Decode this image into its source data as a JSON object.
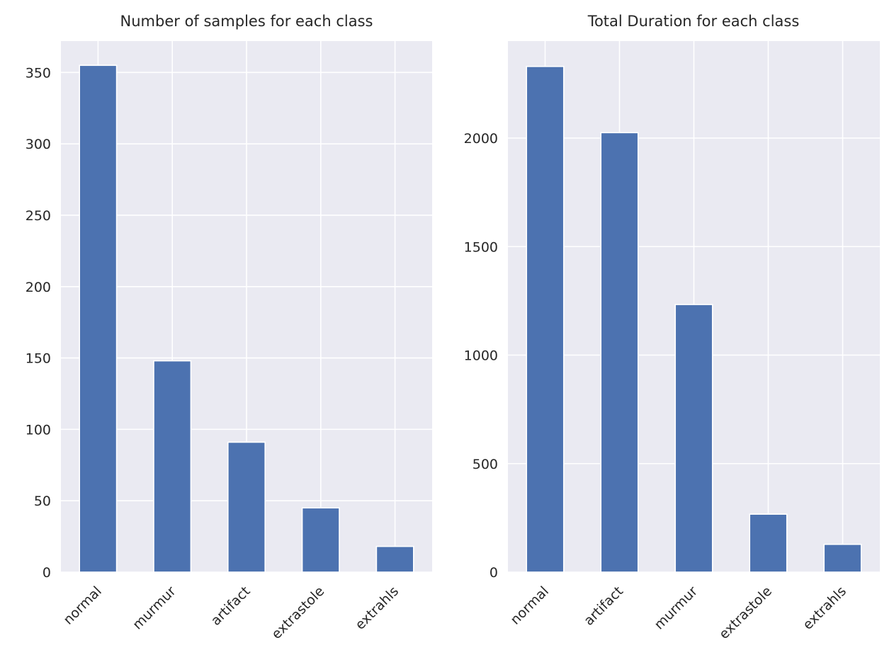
{
  "chart_data": [
    {
      "type": "bar",
      "title": "Number of samples for each class",
      "categories": [
        "normal",
        "murmur",
        "artifact",
        "extrastole",
        "extrahls"
      ],
      "values": [
        355,
        148,
        91,
        45,
        18
      ],
      "xlabel": "",
      "ylabel": "",
      "ylim": [
        0,
        372
      ],
      "yticks": [
        0,
        50,
        100,
        150,
        200,
        250,
        300,
        350
      ],
      "grid": true,
      "color": "#4c72b0"
    },
    {
      "type": "bar",
      "title": "Total Duration for each class",
      "categories": [
        "normal",
        "artifact",
        "murmur",
        "extrastole",
        "extrahls"
      ],
      "values": [
        2330,
        2025,
        1233,
        267,
        128
      ],
      "xlabel": "",
      "ylabel": "",
      "ylim": [
        0,
        2447
      ],
      "yticks": [
        0,
        500,
        1000,
        1500,
        2000
      ],
      "grid": true,
      "color": "#4c72b0"
    }
  ]
}
